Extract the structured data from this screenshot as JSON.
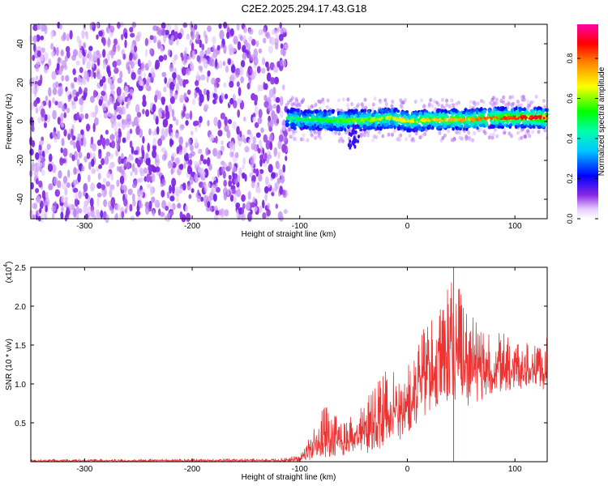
{
  "figure_title": "C2E2.2025.294.17.43.G18",
  "colors": {
    "snr_line": "#ee3333",
    "axis": "#000000",
    "background": "#ffffff"
  },
  "chart_data": [
    {
      "type": "heatmap",
      "title": "C2E2.2025.294.17.43.G18",
      "xlabel": "Height of straight line (km)",
      "ylabel": "Frequency (Hz)",
      "xlim": [
        -350,
        130
      ],
      "ylim": [
        -50,
        50
      ],
      "x_ticks": [
        -300,
        -200,
        -100,
        0,
        100
      ],
      "y_ticks": [
        -40,
        -20,
        0,
        20,
        40
      ],
      "colorbar": {
        "label": "Normalized spectral amplitude",
        "range": [
          0,
          0.97
        ],
        "ticks": [
          0.0,
          0.2,
          0.4,
          0.6,
          0.8
        ]
      },
      "regions": [
        {
          "description": "broadband noise",
          "x_range": [
            -350,
            -112
          ],
          "freq_range": [
            -50,
            50
          ],
          "amplitude_range": [
            0.05,
            0.15
          ]
        },
        {
          "description": "signal band",
          "x_range": [
            -112,
            130
          ],
          "center_freq_hz": 1,
          "band_halfwidth_hz": 5,
          "amplitude_range": [
            0.1,
            0.95
          ]
        }
      ],
      "signal_center_freq": [
        {
          "x": -110,
          "f": 1.5
        },
        {
          "x": -90,
          "f": 1
        },
        {
          "x": -70,
          "f": 0.5
        },
        {
          "x": -50,
          "f": 0.5
        },
        {
          "x": -30,
          "f": 1
        },
        {
          "x": -15,
          "f": 2
        },
        {
          "x": 0,
          "f": 0
        },
        {
          "x": 20,
          "f": 1
        },
        {
          "x": 40,
          "f": 1
        },
        {
          "x": 60,
          "f": 1
        },
        {
          "x": 80,
          "f": 2
        },
        {
          "x": 100,
          "f": 2
        },
        {
          "x": 130,
          "f": 2
        }
      ]
    },
    {
      "type": "line",
      "xlabel": "Height of straight line (km)",
      "ylabel": "SNR (10 * v/v)",
      "y_multiplier": "(x10^4)",
      "y_multiplier_base": "(x10",
      "y_multiplier_exp": "4",
      "xlim": [
        -350,
        130
      ],
      "ylim": [
        0,
        2.5
      ],
      "x_ticks": [
        -300,
        -200,
        -100,
        0,
        100
      ],
      "y_ticks": [
        0.5,
        1.0,
        1.5,
        2.0,
        2.5
      ],
      "series": [
        {
          "name": "SNR",
          "envelope": [
            {
              "x": -350,
              "lo": 0.0,
              "hi": 0.03
            },
            {
              "x": -120,
              "lo": 0.0,
              "hi": 0.04
            },
            {
              "x": -100,
              "lo": 0.0,
              "hi": 0.08
            },
            {
              "x": -90,
              "lo": 0.02,
              "hi": 0.35
            },
            {
              "x": -75,
              "lo": 0.05,
              "hi": 0.8
            },
            {
              "x": -60,
              "lo": 0.08,
              "hi": 0.5
            },
            {
              "x": -40,
              "lo": 0.1,
              "hi": 0.75
            },
            {
              "x": -20,
              "lo": 0.2,
              "hi": 1.3
            },
            {
              "x": -5,
              "lo": 0.3,
              "hi": 1.0
            },
            {
              "x": 10,
              "lo": 0.5,
              "hi": 1.6
            },
            {
              "x": 25,
              "lo": 0.7,
              "hi": 2.0
            },
            {
              "x": 45,
              "lo": 0.8,
              "hi": 2.4
            },
            {
              "x": 60,
              "lo": 0.7,
              "hi": 1.9
            },
            {
              "x": 80,
              "lo": 0.9,
              "hi": 1.7
            },
            {
              "x": 100,
              "lo": 0.9,
              "hi": 1.6
            },
            {
              "x": 115,
              "lo": 1.0,
              "hi": 1.5
            },
            {
              "x": 130,
              "lo": 0.9,
              "hi": 1.6
            }
          ]
        }
      ]
    }
  ]
}
